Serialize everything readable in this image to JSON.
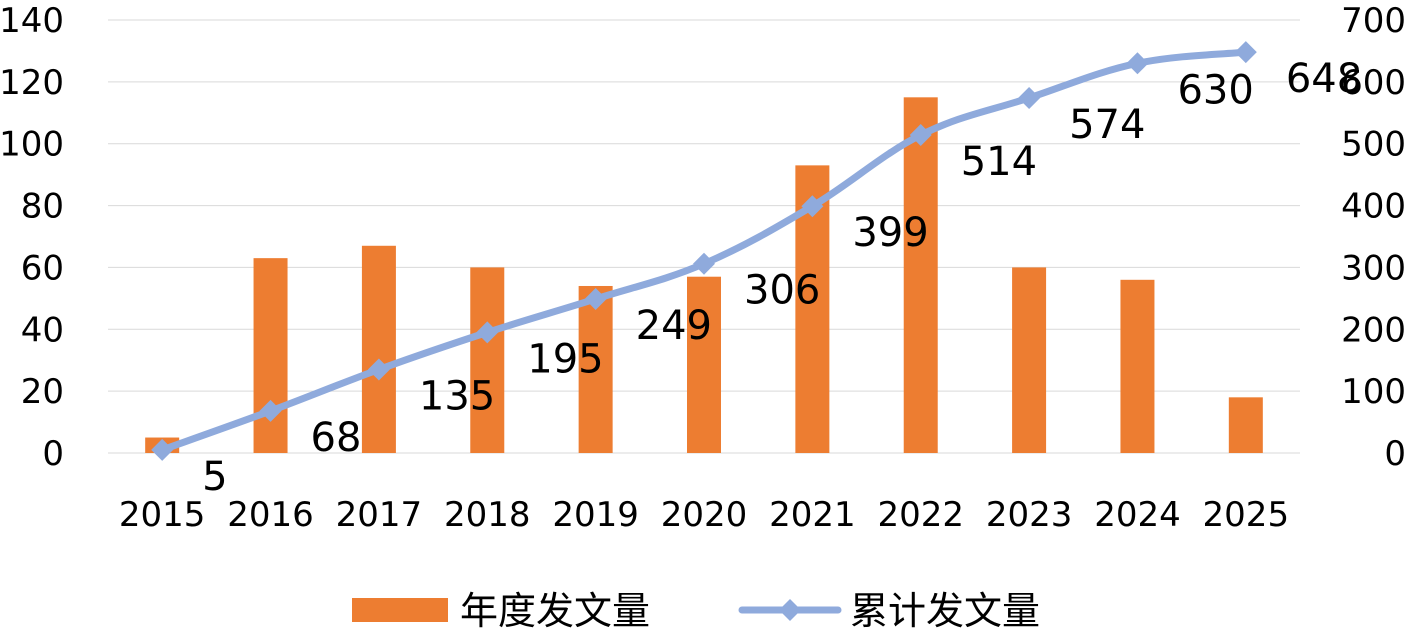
{
  "chart_data": {
    "type": "bar",
    "categories": [
      "2015",
      "2016",
      "2017",
      "2018",
      "2019",
      "2020",
      "2021",
      "2022",
      "2023",
      "2024",
      "2025"
    ],
    "series": [
      {
        "name": "年度发文量",
        "type": "bar",
        "axis": "left",
        "color": "#ED7D31",
        "values": [
          5,
          63,
          67,
          60,
          54,
          57,
          93,
          115,
          60,
          56,
          18
        ]
      },
      {
        "name": "累计发文量",
        "type": "line",
        "axis": "right",
        "color": "#8FAADC",
        "marker": "diamond",
        "values": [
          5,
          68,
          135,
          195,
          249,
          306,
          399,
          514,
          574,
          630,
          648
        ],
        "data_labels": [
          "5",
          "68",
          "135",
          "195",
          "249",
          "306",
          "399",
          "514",
          "574",
          "630",
          "648"
        ]
      }
    ],
    "y_left": {
      "min": 0,
      "max": 140,
      "ticks": [
        "0",
        "20",
        "40",
        "60",
        "80",
        "100",
        "120",
        "140"
      ]
    },
    "y_right": {
      "min": 0,
      "max": 700,
      "ticks": [
        "0",
        "100",
        "200",
        "300",
        "400",
        "500",
        "600",
        "700"
      ]
    },
    "grid": true,
    "legend": "bottom",
    "title": "",
    "xlabel": "",
    "ylabel": ""
  }
}
